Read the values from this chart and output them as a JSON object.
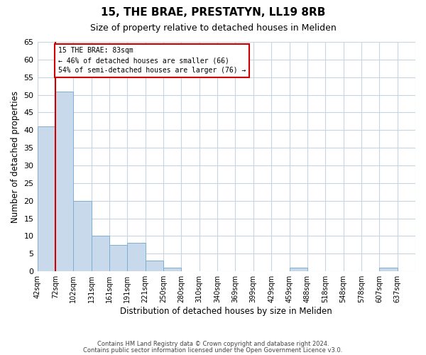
{
  "title": "15, THE BRAE, PRESTATYN, LL19 8RB",
  "subtitle": "Size of property relative to detached houses in Meliden",
  "xlabel": "Distribution of detached houses by size in Meliden",
  "ylabel": "Number of detached properties",
  "footnote1": "Contains HM Land Registry data © Crown copyright and database right 2024.",
  "footnote2": "Contains public sector information licensed under the Open Government Licence v3.0.",
  "bin_labels": [
    "42sqm",
    "72sqm",
    "102sqm",
    "131sqm",
    "161sqm",
    "191sqm",
    "221sqm",
    "250sqm",
    "280sqm",
    "310sqm",
    "340sqm",
    "369sqm",
    "399sqm",
    "429sqm",
    "459sqm",
    "488sqm",
    "518sqm",
    "548sqm",
    "578sqm",
    "607sqm",
    "637sqm"
  ],
  "bar_values": [
    41,
    51,
    20,
    10,
    7.5,
    8,
    3,
    1,
    0,
    0,
    0,
    0,
    0,
    0,
    1,
    0,
    0,
    0,
    0,
    1,
    0
  ],
  "bar_color": "#c8d9eb",
  "bar_edge_color": "#7bafd4",
  "ylim": [
    0,
    65
  ],
  "yticks": [
    0,
    5,
    10,
    15,
    20,
    25,
    30,
    35,
    40,
    45,
    50,
    55,
    60,
    65
  ],
  "property_line_color": "#cc0000",
  "annotation_box_edge_color": "#cc0000",
  "annotation_box_face_color": "#ffffff",
  "background_color": "#ffffff",
  "grid_color": "#c8d4e0"
}
